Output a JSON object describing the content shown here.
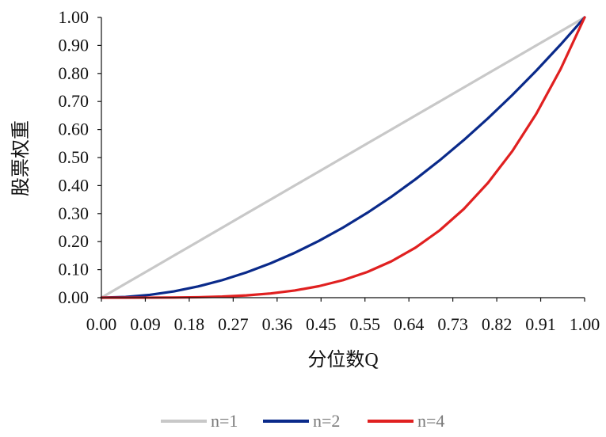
{
  "chart_data": {
    "type": "line",
    "xlabel": "分位数Q",
    "ylabel": "股票权重",
    "x_ticks": [
      "0.00",
      "0.09",
      "0.18",
      "0.27",
      "0.36",
      "0.45",
      "0.55",
      "0.64",
      "0.73",
      "0.82",
      "0.91",
      "1.00"
    ],
    "y_ticks": [
      "0.00",
      "0.10",
      "0.20",
      "0.30",
      "0.40",
      "0.50",
      "0.60",
      "0.70",
      "0.80",
      "0.90",
      "1.00"
    ],
    "xlim": [
      0,
      1
    ],
    "ylim": [
      0,
      1
    ],
    "grid": false,
    "legend_position": "bottom",
    "x": [
      0.0,
      0.05,
      0.1,
      0.15,
      0.2,
      0.25,
      0.3,
      0.35,
      0.4,
      0.45,
      0.5,
      0.55,
      0.6,
      0.65,
      0.7,
      0.75,
      0.8,
      0.85,
      0.9,
      0.95,
      1.0
    ],
    "series": [
      {
        "name": "n=1",
        "color": "#c8c8c8",
        "values": [
          0.0,
          0.05,
          0.1,
          0.15,
          0.2,
          0.25,
          0.3,
          0.35,
          0.4,
          0.45,
          0.5,
          0.55,
          0.6,
          0.65,
          0.7,
          0.75,
          0.8,
          0.85,
          0.9,
          0.95,
          1.0
        ]
      },
      {
        "name": "n=2",
        "color": "#0a2a8a",
        "values": [
          0.0,
          0.0025,
          0.01,
          0.0225,
          0.04,
          0.0625,
          0.09,
          0.1225,
          0.16,
          0.2025,
          0.25,
          0.3025,
          0.36,
          0.4225,
          0.49,
          0.5625,
          0.64,
          0.7225,
          0.81,
          0.9025,
          1.0
        ]
      },
      {
        "name": "n=4",
        "color": "#e02020",
        "values": [
          0.0,
          0.0,
          0.0001,
          0.0005,
          0.0016,
          0.0039,
          0.0081,
          0.015,
          0.0256,
          0.041,
          0.0625,
          0.0915,
          0.1296,
          0.1785,
          0.2401,
          0.3164,
          0.4096,
          0.522,
          0.6561,
          0.8145,
          1.0
        ]
      }
    ]
  }
}
